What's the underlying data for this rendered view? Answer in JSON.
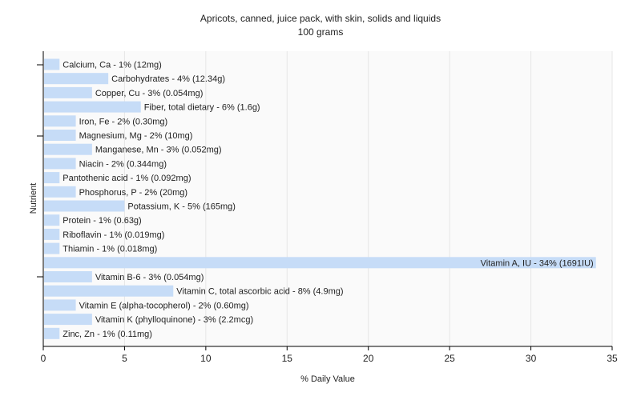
{
  "chart_data": {
    "type": "bar",
    "orientation": "horizontal",
    "title": "Apricots, canned, juice pack, with skin, solids and liquids",
    "subtitle": "100 grams",
    "xlabel": "% Daily Value",
    "ylabel": "Nutrient",
    "xlim": [
      0,
      35
    ],
    "xticks": [
      0,
      5,
      10,
      15,
      20,
      25,
      30,
      35
    ],
    "grid": true,
    "bar_color": "#c6dcf7",
    "categories": [
      "Calcium, Ca",
      "Carbohydrates",
      "Copper, Cu",
      "Fiber, total dietary",
      "Iron, Fe",
      "Magnesium, Mg",
      "Manganese, Mn",
      "Niacin",
      "Pantothenic acid",
      "Phosphorus, P",
      "Potassium, K",
      "Protein",
      "Riboflavin",
      "Thiamin",
      "Vitamin A, IU",
      "Vitamin B-6",
      "Vitamin C, total ascorbic acid",
      "Vitamin E (alpha-tocopherol)",
      "Vitamin K (phylloquinone)",
      "Zinc, Zn"
    ],
    "values": [
      1,
      4,
      3,
      6,
      2,
      2,
      3,
      2,
      1,
      2,
      5,
      1,
      1,
      1,
      34,
      3,
      8,
      2,
      3,
      1
    ],
    "labels": [
      "Calcium, Ca - 1% (12mg)",
      "Carbohydrates - 4% (12.34g)",
      "Copper, Cu - 3% (0.054mg)",
      "Fiber, total dietary - 6% (1.6g)",
      "Iron, Fe - 2% (0.30mg)",
      "Magnesium, Mg - 2% (10mg)",
      "Manganese, Mn - 3% (0.052mg)",
      "Niacin - 2% (0.344mg)",
      "Pantothenic acid - 1% (0.092mg)",
      "Phosphorus, P - 2% (20mg)",
      "Potassium, K - 5% (165mg)",
      "Protein - 1% (0.63g)",
      "Riboflavin - 1% (0.019mg)",
      "Thiamin - 1% (0.018mg)",
      "Vitamin A, IU - 34% (1691IU)",
      "Vitamin B-6 - 3% (0.054mg)",
      "Vitamin C, total ascorbic acid - 8% (4.9mg)",
      "Vitamin E (alpha-tocopherol) - 2% (0.60mg)",
      "Vitamin K (phylloquinone) - 3% (2.2mcg)",
      "Zinc, Zn - 1% (0.11mg)"
    ]
  }
}
